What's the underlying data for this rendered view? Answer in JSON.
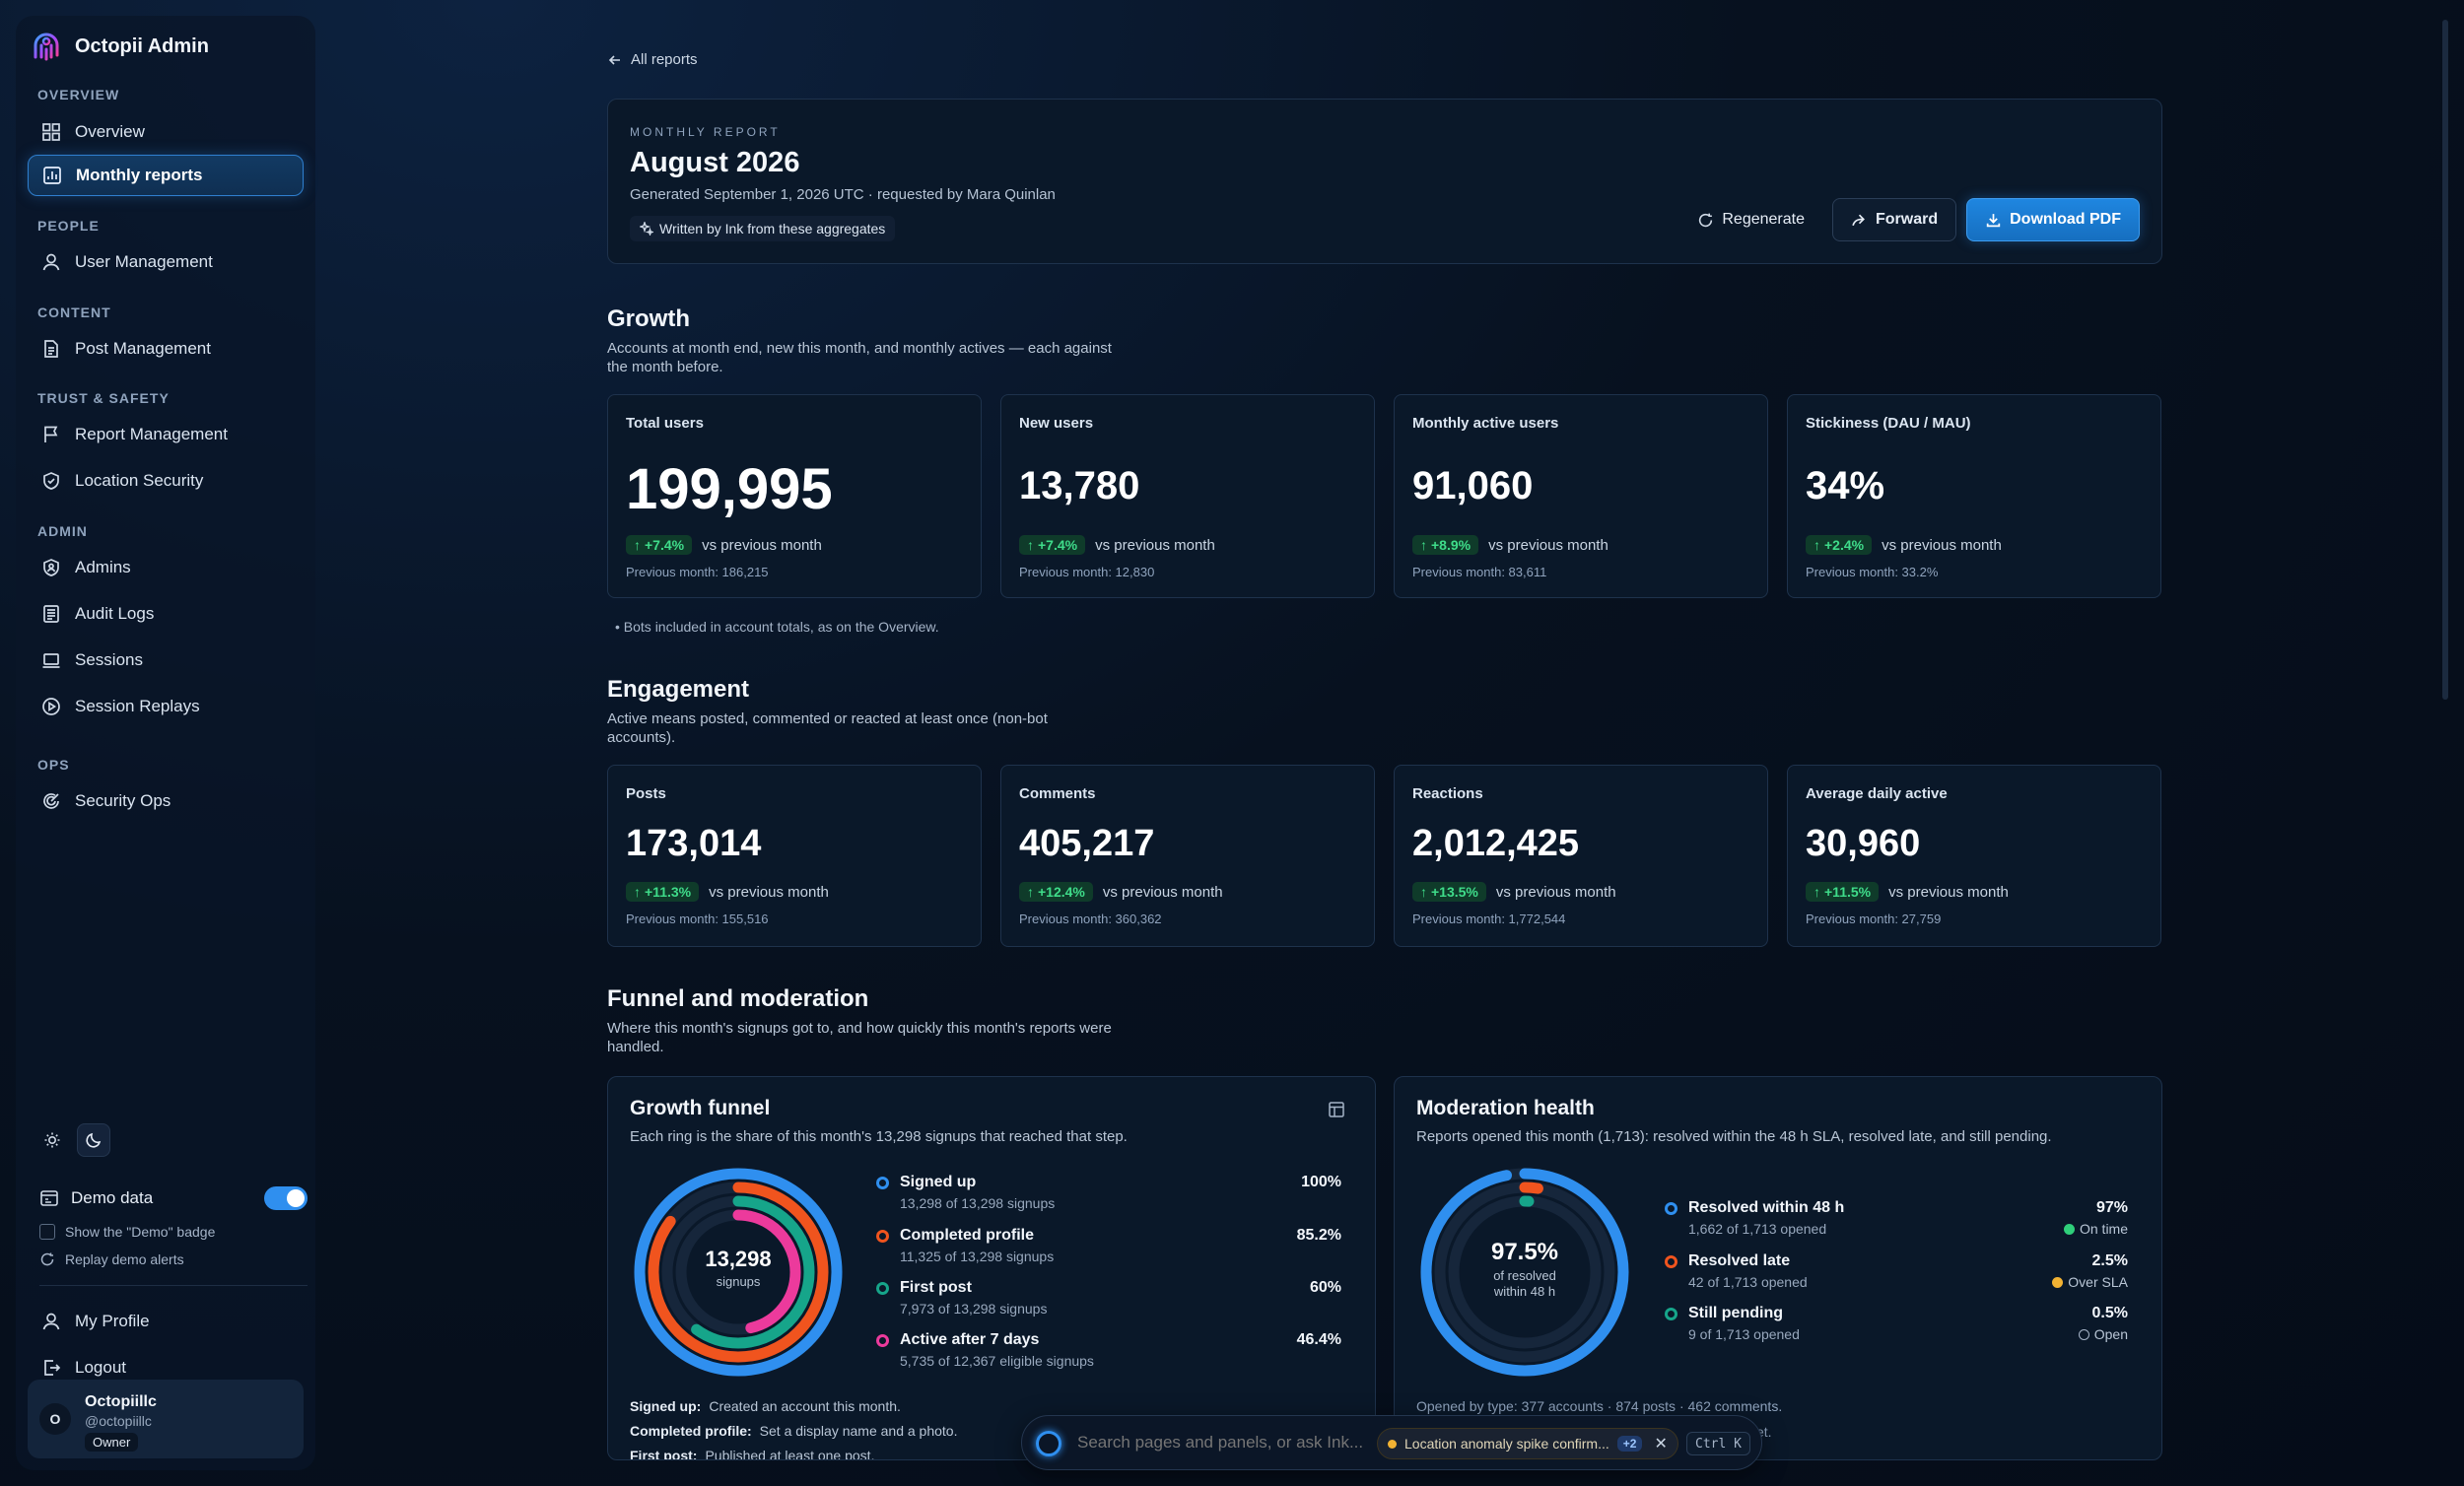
{
  "sidebar": {
    "brand": "Octopii Admin",
    "sections": [
      {
        "label": "OVERVIEW"
      },
      {
        "label": "PEOPLE"
      },
      {
        "label": "CONTENT"
      },
      {
        "label": "TRUST & SAFETY"
      },
      {
        "label": "ADMIN"
      },
      {
        "label": "OPS"
      }
    ],
    "items": [
      {
        "label": "Overview",
        "icon": "grid-icon"
      },
      {
        "label": "Monthly reports",
        "icon": "chart-icon",
        "active": true
      },
      {
        "label": "User Management",
        "icon": "user-icon"
      },
      {
        "label": "Post Management",
        "icon": "document-icon"
      },
      {
        "label": "Report Management",
        "icon": "flag-icon"
      },
      {
        "label": "Location Security",
        "icon": "shield-icon"
      },
      {
        "label": "Admins",
        "icon": "shield-user-icon"
      },
      {
        "label": "Audit Logs",
        "icon": "log-icon"
      },
      {
        "label": "Sessions",
        "icon": "laptop-icon"
      },
      {
        "label": "Session Replays",
        "icon": "play-icon"
      },
      {
        "label": "Security Ops",
        "icon": "radar-icon"
      }
    ],
    "demo": {
      "label": "Demo data",
      "enabled": true,
      "badge_option": "Show the \"Demo\" badge",
      "replay_option": "Replay demo alerts"
    },
    "profile_label": "My Profile",
    "logout_label": "Logout",
    "user": {
      "initial": "O",
      "name": "Octopiillc",
      "handle": "@octopiillc",
      "role": "Owner"
    }
  },
  "back_link": "All reports",
  "report": {
    "eyebrow": "MONTHLY REPORT",
    "title": "August 2026",
    "meta": "Generated September 1, 2026 UTC · requested by Mara Quinlan",
    "ink_note": "Written by Ink from these aggregates",
    "actions": {
      "regenerate": "Regenerate",
      "forward": "Forward",
      "download": "Download PDF"
    }
  },
  "growth": {
    "title": "Growth",
    "subtitle": "Accounts at month end, new this month, and monthly actives — each against the month before.",
    "cards": [
      {
        "label": "Total users",
        "value": "199,995",
        "delta": "+7.4%",
        "vs": "vs previous month",
        "prev": "Previous month: 186,215"
      },
      {
        "label": "New users",
        "value": "13,780",
        "delta": "+7.4%",
        "vs": "vs previous month",
        "prev": "Previous month: 12,830"
      },
      {
        "label": "Monthly active users",
        "value": "91,060",
        "delta": "+8.9%",
        "vs": "vs previous month",
        "prev": "Previous month: 83,611"
      },
      {
        "label": "Stickiness (DAU / MAU)",
        "value": "34%",
        "delta": "+2.4%",
        "vs": "vs previous month",
        "prev": "Previous month: 33.2%"
      }
    ],
    "note": "Bots included in account totals, as on the Overview."
  },
  "engagement": {
    "title": "Engagement",
    "subtitle": "Active means posted, commented or reacted at least once (non-bot accounts).",
    "cards": [
      {
        "label": "Posts",
        "value": "173,014",
        "delta": "+11.3%",
        "vs": "vs previous month",
        "prev": "Previous month: 155,516"
      },
      {
        "label": "Comments",
        "value": "405,217",
        "delta": "+12.4%",
        "vs": "vs previous month",
        "prev": "Previous month: 360,362"
      },
      {
        "label": "Reactions",
        "value": "2,012,425",
        "delta": "+13.5%",
        "vs": "vs previous month",
        "prev": "Previous month: 1,772,544"
      },
      {
        "label": "Average daily active",
        "value": "30,960",
        "delta": "+11.5%",
        "vs": "vs previous month",
        "prev": "Previous month: 27,759"
      }
    ]
  },
  "funnel_section": {
    "title": "Funnel and moderation",
    "subtitle": "Where this month's signups got to, and how quickly this month's reports were handled."
  },
  "growth_funnel": {
    "title": "Growth funnel",
    "subtitle": "Each ring is the share of this month's 13,298 signups that reached that step.",
    "center_value": "13,298",
    "center_label": "signups",
    "steps": [
      {
        "name": "Signed up",
        "sub": "13,298 of 13,298 signups",
        "pct": "100%",
        "fraction": 1.0,
        "color": "#2f8fef"
      },
      {
        "name": "Completed profile",
        "sub": "11,325 of 13,298 signups",
        "pct": "85.2%",
        "fraction": 0.852,
        "color": "#f0541e"
      },
      {
        "name": "First post",
        "sub": "7,973 of 13,298 signups",
        "pct": "60%",
        "fraction": 0.6,
        "color": "#16a58a"
      },
      {
        "name": "Active after 7 days",
        "sub": "5,735 of 12,367 eligible signups",
        "pct": "46.4%",
        "fraction": 0.464,
        "color": "#ec3a9c"
      }
    ],
    "definitions": [
      {
        "term": "Signed up:",
        "text": "Created an account this month."
      },
      {
        "term": "Completed profile:",
        "text": "Set a display name and a photo."
      },
      {
        "term": "First post:",
        "text": "Published at least one post."
      }
    ]
  },
  "moderation": {
    "title": "Moderation health",
    "subtitle": "Reports opened this month (1,713): resolved within the 48 h SLA, resolved late, and still pending.",
    "center_value": "97.5%",
    "center_label": "of resolved within 48 h",
    "rows": [
      {
        "name": "Resolved within 48 h",
        "sub": "1,662 of 1,713 opened",
        "pct": "97%",
        "fraction": 0.97,
        "status": "On time",
        "color": "#2f8fef",
        "status_color": "#2fcf7a"
      },
      {
        "name": "Resolved late",
        "sub": "42 of 1,713 opened",
        "pct": "2.5%",
        "fraction": 0.025,
        "status": "Over SLA",
        "color": "#f0541e",
        "status_color": "#f2b233"
      },
      {
        "name": "Still pending",
        "sub": "9 of 1,713 opened",
        "pct": "0.5%",
        "fraction": 0.005,
        "status": "Open",
        "color": "#16a58a",
        "status_color": "#a5b4c8"
      }
    ],
    "footer": "Opened by type: 377 accounts · 874 posts · 462 comments.",
    "footer2": "yet."
  },
  "command_bar": {
    "placeholder": "Search pages and panels, or ask Ink...",
    "alert_text": "Location anomaly spike confirm...",
    "alert_count": "+2",
    "shortcut": "Ctrl K"
  }
}
